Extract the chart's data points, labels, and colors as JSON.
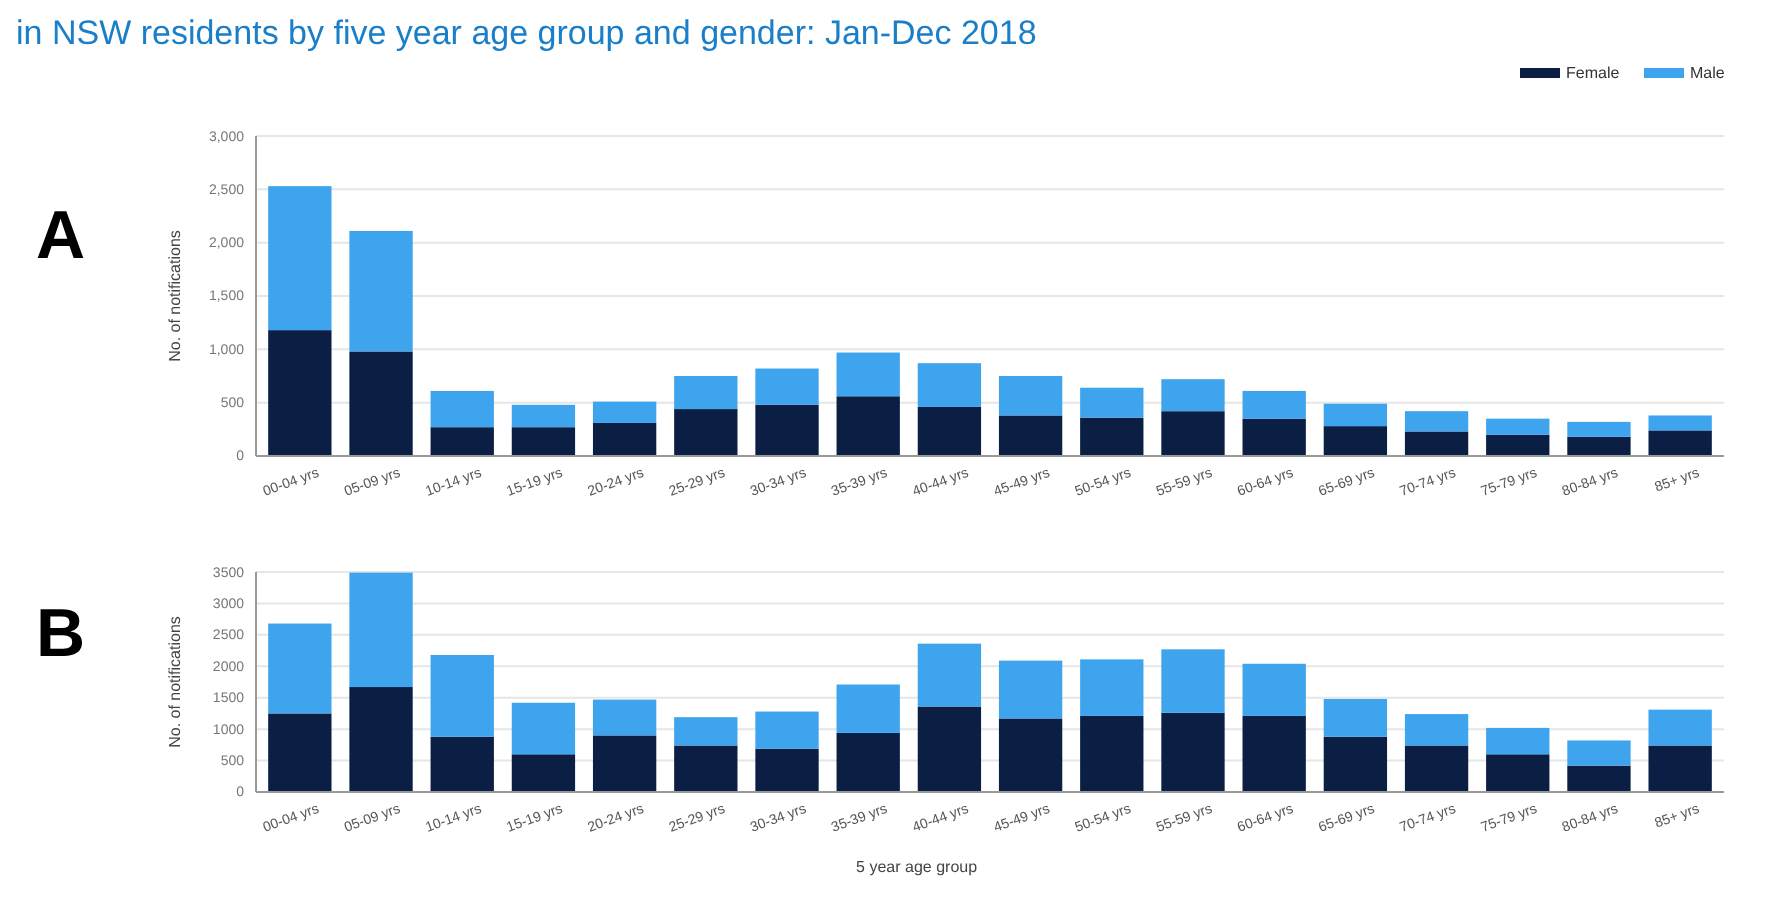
{
  "chart_data": [
    {
      "type": "bar",
      "title": "in NSW residents by five year age group and gender: Jan-Dec 2018",
      "ylabel": "No. of notifications",
      "annotations": [
        "A"
      ],
      "categories": [
        "00-04 yrs",
        "05-09 yrs",
        "10-14 yrs",
        "15-19 yrs",
        "20-24 yrs",
        "25-29 yrs",
        "30-34 yrs",
        "35-39 yrs",
        "40-44 yrs",
        "45-49 yrs",
        "50-54 yrs",
        "55-59 yrs",
        "60-64 yrs",
        "65-69 yrs",
        "70-74 yrs",
        "75-79 yrs",
        "80-84 yrs",
        "85+ yrs"
      ],
      "stacked": true,
      "series": [
        {
          "name": "Female",
          "color": "#0b1f45",
          "values": [
            1180,
            980,
            270,
            270,
            310,
            440,
            480,
            560,
            460,
            380,
            360,
            420,
            350,
            280,
            230,
            200,
            180,
            240
          ]
        },
        {
          "name": "Male",
          "color": "#3fa4ee",
          "values": [
            1350,
            1130,
            340,
            210,
            200,
            310,
            340,
            410,
            410,
            370,
            280,
            300,
            260,
            210,
            190,
            150,
            140,
            140
          ]
        }
      ],
      "ylim": [
        0,
        3000
      ],
      "yticks": [
        0,
        500,
        {
          "value": 1000,
          "label": "1,000"
        },
        {
          "value": 1500,
          "label": "1,500"
        },
        {
          "value": 2000,
          "label": "2,000"
        },
        {
          "value": 2500,
          "label": "2,500"
        },
        {
          "value": 3000,
          "label": "3,000"
        }
      ],
      "grid": "y",
      "legend": "top right"
    },
    {
      "type": "bar",
      "xlabel": "5 year age group",
      "ylabel": "No. of notifications",
      "annotations": [
        "B"
      ],
      "categories": [
        "00-04 yrs",
        "05-09 yrs",
        "10-14 yrs",
        "15-19 yrs",
        "20-24 yrs",
        "25-29 yrs",
        "30-34 yrs",
        "35-39 yrs",
        "40-44 yrs",
        "45-49 yrs",
        "50-54 yrs",
        "55-59 yrs",
        "60-64 yrs",
        "65-69 yrs",
        "70-74 yrs",
        "75-79 yrs",
        "80-84 yrs",
        "85+ yrs"
      ],
      "stacked": true,
      "series": [
        {
          "color": "#0b1f45",
          "values": [
            1250,
            1670,
            880,
            600,
            900,
            740,
            690,
            940,
            1360,
            1170,
            1210,
            1260,
            1210,
            880,
            740,
            600,
            420,
            740
          ]
        },
        {
          "color": "#3fa4ee",
          "values": [
            1430,
            1820,
            1300,
            820,
            570,
            450,
            590,
            770,
            1000,
            920,
            900,
            1010,
            830,
            600,
            500,
            420,
            400,
            570
          ]
        }
      ],
      "ylim": [
        0,
        3500
      ],
      "yticks": [
        0,
        500,
        1000,
        1500,
        2000,
        2500,
        3000,
        3500
      ],
      "grid": "y"
    }
  ]
}
